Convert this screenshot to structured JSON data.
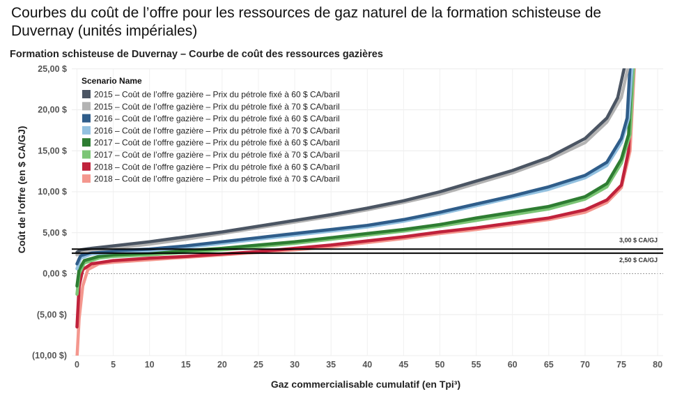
{
  "page": {
    "title": "Courbes du coût de l’offre pour les ressources de gaz naturel de la formation schisteuse de Duvernay (unités impériales)"
  },
  "chart_data": {
    "type": "line",
    "title": "Formation schisteuse de Duvernay – Courbe de coût des ressources gazières",
    "xlabel": "Gaz commercialisable cumulatif (en Tpi³)",
    "ylabel": "Coût de l’offre (en $ CA/GJ)",
    "xlim": [
      -0.5,
      81
    ],
    "ylim": [
      -10.5,
      25.5
    ],
    "x_ticks": [
      0,
      5,
      10,
      15,
      20,
      25,
      30,
      35,
      40,
      45,
      50,
      55,
      60,
      65,
      70,
      75,
      80
    ],
    "y_ticks": [
      {
        "value": 25,
        "label": "25,00 $"
      },
      {
        "value": 20,
        "label": "20,00 $"
      },
      {
        "value": 15,
        "label": "15,00 $"
      },
      {
        "value": 10,
        "label": "10,00 $"
      },
      {
        "value": 5,
        "label": "5,00 $"
      },
      {
        "value": 0,
        "label": "0,00 $"
      },
      {
        "value": -5,
        "label": "(5,00 $)"
      },
      {
        "value": -10,
        "label": "(10,00 $)"
      }
    ],
    "legend_title": "Scenario Name",
    "legend_position": "top-left",
    "series": [
      {
        "name": "2015 – Coût de l’offre gazière – Prix du pétrole fixé à 60 $ CA/baril",
        "color": "#4b5563",
        "points": [
          [
            0,
            2.6
          ],
          [
            0.5,
            2.9
          ],
          [
            2,
            3.1
          ],
          [
            5,
            3.4
          ],
          [
            10,
            3.9
          ],
          [
            15,
            4.5
          ],
          [
            20,
            5.1
          ],
          [
            25,
            5.8
          ],
          [
            30,
            6.5
          ],
          [
            35,
            7.2
          ],
          [
            40,
            8.0
          ],
          [
            45,
            8.9
          ],
          [
            50,
            10.0
          ],
          [
            55,
            11.3
          ],
          [
            60,
            12.6
          ],
          [
            65,
            14.2
          ],
          [
            70,
            16.5
          ],
          [
            73,
            19.0
          ],
          [
            74.5,
            21.5
          ],
          [
            75.5,
            25.5
          ]
        ]
      },
      {
        "name": "2015 – Coût de l’offre gazière – Prix du pétrole fixé à 70 $ CA/baril",
        "color": "#b3b3b3",
        "points": [
          [
            0,
            2.3
          ],
          [
            0.5,
            2.6
          ],
          [
            2,
            2.9
          ],
          [
            5,
            3.1
          ],
          [
            10,
            3.6
          ],
          [
            15,
            4.2
          ],
          [
            20,
            4.9
          ],
          [
            25,
            5.6
          ],
          [
            30,
            6.3
          ],
          [
            35,
            7.0
          ],
          [
            40,
            7.8
          ],
          [
            45,
            8.7
          ],
          [
            50,
            9.7
          ],
          [
            55,
            11.0
          ],
          [
            60,
            12.3
          ],
          [
            65,
            13.9
          ],
          [
            70,
            16.0
          ],
          [
            73,
            18.5
          ],
          [
            75,
            21.5
          ],
          [
            76,
            25.5
          ]
        ]
      },
      {
        "name": "2016 – Coût de l’offre gazière – Prix du pétrole fixé à 60 $ CA/baril",
        "color": "#2f5d8a",
        "points": [
          [
            0,
            1.2
          ],
          [
            0.5,
            2.2
          ],
          [
            2,
            2.6
          ],
          [
            5,
            2.8
          ],
          [
            10,
            3.0
          ],
          [
            15,
            3.4
          ],
          [
            20,
            3.9
          ],
          [
            25,
            4.4
          ],
          [
            30,
            4.9
          ],
          [
            35,
            5.4
          ],
          [
            40,
            5.9
          ],
          [
            45,
            6.6
          ],
          [
            50,
            7.5
          ],
          [
            55,
            8.5
          ],
          [
            60,
            9.5
          ],
          [
            65,
            10.6
          ],
          [
            70,
            12.0
          ],
          [
            73,
            13.6
          ],
          [
            75,
            16.5
          ],
          [
            75.8,
            19
          ],
          [
            76.2,
            25.5
          ]
        ]
      },
      {
        "name": "2016 – Coût de l’offre gazière – Prix du pétrole fixé à 70 $ CA/baril",
        "color": "#93c1e0",
        "points": [
          [
            0,
            0.6
          ],
          [
            0.5,
            1.9
          ],
          [
            2,
            2.4
          ],
          [
            5,
            2.6
          ],
          [
            10,
            2.8
          ],
          [
            15,
            3.2
          ],
          [
            20,
            3.7
          ],
          [
            25,
            4.2
          ],
          [
            30,
            4.7
          ],
          [
            35,
            5.2
          ],
          [
            40,
            5.7
          ],
          [
            45,
            6.4
          ],
          [
            50,
            7.3
          ],
          [
            55,
            8.3
          ],
          [
            60,
            9.3
          ],
          [
            65,
            10.3
          ],
          [
            70,
            11.7
          ],
          [
            73,
            13.2
          ],
          [
            75,
            16.0
          ],
          [
            76,
            19
          ],
          [
            76.5,
            25.5
          ]
        ]
      },
      {
        "name": "2017 – Coût de l’offre gazière – Prix du pétrole fixé à 60 $ CA/baril",
        "color": "#2e7d32",
        "points": [
          [
            0,
            -1.5
          ],
          [
            0.3,
            0.5
          ],
          [
            1,
            1.6
          ],
          [
            3,
            2.1
          ],
          [
            5,
            2.3
          ],
          [
            10,
            2.5
          ],
          [
            15,
            2.8
          ],
          [
            20,
            3.1
          ],
          [
            25,
            3.5
          ],
          [
            30,
            3.9
          ],
          [
            35,
            4.4
          ],
          [
            40,
            4.9
          ],
          [
            45,
            5.4
          ],
          [
            50,
            6.0
          ],
          [
            55,
            6.8
          ],
          [
            60,
            7.5
          ],
          [
            65,
            8.2
          ],
          [
            70,
            9.4
          ],
          [
            73,
            11.0
          ],
          [
            75,
            14.0
          ],
          [
            76,
            17
          ],
          [
            76.5,
            25.5
          ]
        ]
      },
      {
        "name": "2017 – Coût de l’offre gazière – Prix du pétrole fixé à 70 $ CA/baril",
        "color": "#7cc576",
        "points": [
          [
            0,
            -2.5
          ],
          [
            0.3,
            0.0
          ],
          [
            1,
            1.3
          ],
          [
            3,
            1.9
          ],
          [
            5,
            2.1
          ],
          [
            10,
            2.3
          ],
          [
            15,
            2.6
          ],
          [
            20,
            2.9
          ],
          [
            25,
            3.3
          ],
          [
            30,
            3.7
          ],
          [
            35,
            4.2
          ],
          [
            40,
            4.7
          ],
          [
            45,
            5.2
          ],
          [
            50,
            5.8
          ],
          [
            55,
            6.5
          ],
          [
            60,
            7.2
          ],
          [
            65,
            7.9
          ],
          [
            70,
            9.1
          ],
          [
            73,
            10.6
          ],
          [
            75,
            13.5
          ],
          [
            76.2,
            17
          ],
          [
            76.7,
            25.5
          ]
        ]
      },
      {
        "name": "2018 – Coût de l’offre gazière – Prix du pétrole fixé à 60 $ CA/baril",
        "color": "#c0223b",
        "points": [
          [
            0,
            -6.5
          ],
          [
            0.3,
            -1.5
          ],
          [
            0.8,
            0.5
          ],
          [
            2,
            1.2
          ],
          [
            5,
            1.6
          ],
          [
            10,
            1.9
          ],
          [
            15,
            2.1
          ],
          [
            20,
            2.4
          ],
          [
            25,
            2.7
          ],
          [
            30,
            3.1
          ],
          [
            35,
            3.5
          ],
          [
            40,
            4.0
          ],
          [
            45,
            4.5
          ],
          [
            50,
            5.1
          ],
          [
            55,
            5.6
          ],
          [
            60,
            6.2
          ],
          [
            65,
            6.8
          ],
          [
            70,
            7.8
          ],
          [
            73,
            9.0
          ],
          [
            75,
            10.8
          ],
          [
            76,
            15
          ],
          [
            76.5,
            25.5
          ]
        ]
      },
      {
        "name": "2018 – Coût de l’offre gazière – Prix du pétrole fixé à 70 $ CA/baril",
        "color": "#f4978e",
        "points": [
          [
            0,
            -10.3
          ],
          [
            0.3,
            -5.5
          ],
          [
            0.8,
            -1.5
          ],
          [
            1.5,
            0.5
          ],
          [
            3,
            1.2
          ],
          [
            5,
            1.4
          ],
          [
            10,
            1.7
          ],
          [
            15,
            2.0
          ],
          [
            20,
            2.3
          ],
          [
            25,
            2.6
          ],
          [
            30,
            2.9
          ],
          [
            35,
            3.3
          ],
          [
            40,
            3.8
          ],
          [
            45,
            4.3
          ],
          [
            50,
            4.9
          ],
          [
            55,
            5.4
          ],
          [
            60,
            6.0
          ],
          [
            65,
            6.6
          ],
          [
            70,
            7.5
          ],
          [
            73,
            8.7
          ],
          [
            75,
            10.5
          ],
          [
            76.2,
            15
          ],
          [
            76.8,
            25.5
          ]
        ]
      }
    ],
    "reference_lines": [
      {
        "value": 3.0,
        "label": "3,00 $ CA/GJ"
      },
      {
        "value": 2.5,
        "label": "2,50 $ CA/GJ"
      }
    ]
  }
}
